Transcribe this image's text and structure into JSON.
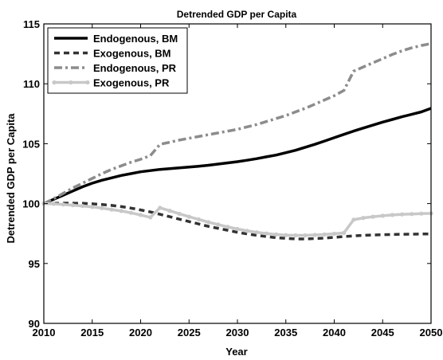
{
  "chart_data": {
    "type": "line",
    "title": "Detrended GDP per Capita",
    "xlabel": "Year",
    "ylabel": "Detrended GDP per Capita",
    "xlim": [
      2010,
      2050
    ],
    "ylim": [
      90,
      115
    ],
    "xticks": [
      2010,
      2015,
      2020,
      2025,
      2030,
      2035,
      2040,
      2045,
      2050
    ],
    "yticks": [
      90,
      95,
      100,
      105,
      110,
      115
    ],
    "grid": false,
    "legend_position": "top-left",
    "x": [
      2010,
      2011,
      2012,
      2013,
      2014,
      2015,
      2016,
      2017,
      2018,
      2019,
      2020,
      2021,
      2022,
      2023,
      2024,
      2025,
      2026,
      2027,
      2028,
      2029,
      2030,
      2031,
      2032,
      2033,
      2034,
      2035,
      2036,
      2037,
      2038,
      2039,
      2040,
      2041,
      2042,
      2043,
      2044,
      2045,
      2046,
      2047,
      2048,
      2049,
      2050
    ],
    "series": [
      {
        "name": "Endogenous, BM",
        "color": "#000000",
        "style": "solid",
        "values": [
          100.0,
          100.35,
          100.7,
          101.05,
          101.4,
          101.7,
          101.95,
          102.15,
          102.35,
          102.5,
          102.65,
          102.75,
          102.85,
          102.92,
          102.98,
          103.05,
          103.12,
          103.2,
          103.3,
          103.4,
          103.5,
          103.62,
          103.75,
          103.9,
          104.05,
          104.25,
          104.45,
          104.7,
          104.95,
          105.22,
          105.5,
          105.78,
          106.05,
          106.3,
          106.55,
          106.8,
          107.02,
          107.25,
          107.45,
          107.65,
          107.95
        ]
      },
      {
        "name": "Exogenous, BM",
        "color": "#333333",
        "style": "dashed",
        "values": [
          100.0,
          100.02,
          100.03,
          100.03,
          100.02,
          99.98,
          99.92,
          99.85,
          99.75,
          99.62,
          99.47,
          99.3,
          99.1,
          98.9,
          98.7,
          98.5,
          98.3,
          98.1,
          97.93,
          97.77,
          97.6,
          97.47,
          97.35,
          97.25,
          97.15,
          97.1,
          97.05,
          97.05,
          97.08,
          97.12,
          97.18,
          97.25,
          97.3,
          97.35,
          97.38,
          97.4,
          97.42,
          97.44,
          97.45,
          97.46,
          97.47
        ]
      },
      {
        "name": "Endogenous, PR",
        "color": "#8c8c8c",
        "style": "dashdot",
        "values": [
          100.0,
          100.4,
          100.85,
          101.3,
          101.7,
          102.1,
          102.5,
          102.85,
          103.15,
          103.45,
          103.7,
          104.0,
          104.95,
          105.12,
          105.3,
          105.45,
          105.6,
          105.75,
          105.9,
          106.05,
          106.2,
          106.4,
          106.6,
          106.85,
          107.1,
          107.35,
          107.65,
          107.95,
          108.3,
          108.65,
          109.0,
          109.45,
          111.05,
          111.4,
          111.75,
          112.1,
          112.45,
          112.75,
          113.0,
          113.2,
          113.35
        ]
      },
      {
        "name": "Exogenous, PR",
        "color": "#c8c8c8",
        "style": "solid-marker",
        "values": [
          100.0,
          99.98,
          99.93,
          99.87,
          99.8,
          99.72,
          99.62,
          99.5,
          99.38,
          99.23,
          99.05,
          98.85,
          99.65,
          99.4,
          99.15,
          98.9,
          98.68,
          98.45,
          98.25,
          98.05,
          97.88,
          97.72,
          97.6,
          97.5,
          97.42,
          97.37,
          97.35,
          97.35,
          97.38,
          97.42,
          97.48,
          97.55,
          98.65,
          98.8,
          98.9,
          98.98,
          99.05,
          99.1,
          99.13,
          99.16,
          99.18
        ]
      }
    ]
  }
}
